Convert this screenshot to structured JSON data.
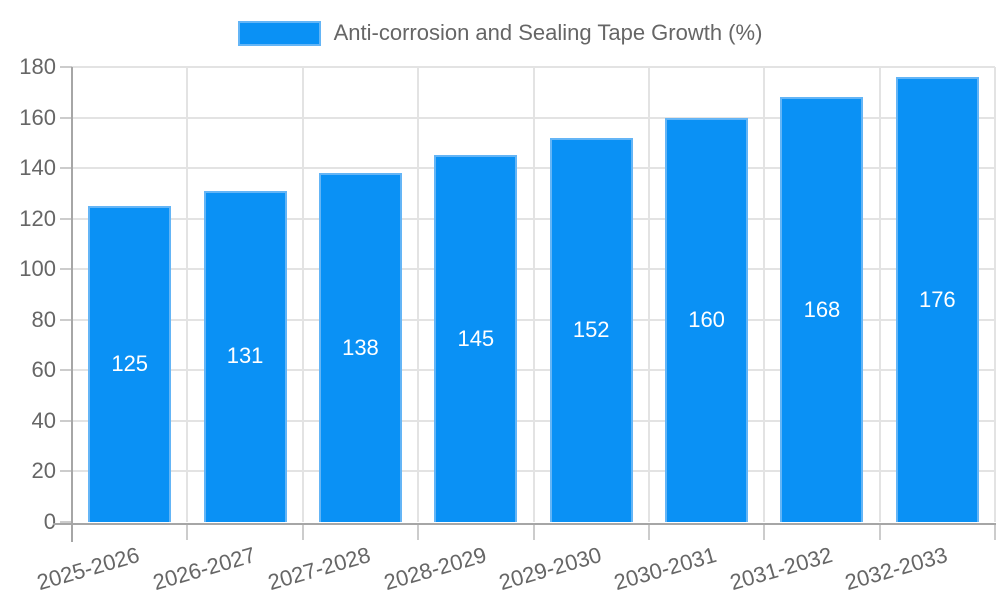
{
  "chart_data": {
    "type": "bar",
    "title": "Anti-corrosion and Sealing Tape Growth (%)",
    "series_name": "Anti-corrosion and Sealing Tape Growth (%)",
    "legend_position": "top",
    "categories": [
      "2025-2026",
      "2026-2027",
      "2027-2028",
      "2028-2029",
      "2029-2030",
      "2030-2031",
      "2031-2032",
      "2032-2033"
    ],
    "values": [
      125,
      131,
      138,
      145,
      152,
      160,
      168,
      176
    ],
    "bar_value_labels": [
      "125",
      "131",
      "138",
      "145",
      "152",
      "160",
      "168",
      "176"
    ],
    "xlabel": "",
    "ylabel": "",
    "ylim": [
      0,
      180
    ],
    "yticks": [
      0,
      20,
      40,
      60,
      80,
      100,
      120,
      140,
      160,
      180
    ],
    "grid": true,
    "colors": {
      "bar_fill": "#0a91f5",
      "bar_border": "#64b5f6",
      "bar_label_text": "#ffffff",
      "grid_line": "#e3e3e3",
      "axis_line": "#a6a6a6",
      "tick_mark": "#cccccc",
      "tick_text": "#666666",
      "background": "#ffffff"
    }
  }
}
